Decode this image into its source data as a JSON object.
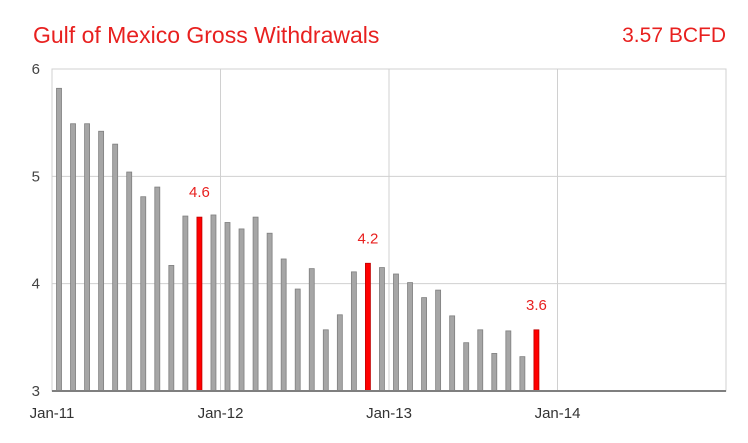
{
  "title": "Gulf of Mexico Gross Withdrawals",
  "headline_value": "3.57 BCFD",
  "chart_data": {
    "type": "bar",
    "title": "Gulf of Mexico Gross Withdrawals",
    "xlabel": "",
    "ylabel": "",
    "ylim": [
      3,
      6
    ],
    "yticks": [
      3,
      4,
      5,
      6
    ],
    "x_ticks": [
      {
        "label": "Jan-11",
        "month_index": 0
      },
      {
        "label": "Jan-12",
        "month_index": 12
      },
      {
        "label": "Jan-13",
        "month_index": 24
      },
      {
        "label": "Jan-14",
        "month_index": 36
      }
    ],
    "x_range_months": [
      0,
      48
    ],
    "grid": true,
    "series": [
      {
        "color": "#a6a6a6",
        "highlight_color": "#ff0000",
        "values": [
          5.82,
          5.49,
          5.49,
          5.42,
          5.3,
          5.04,
          4.81,
          4.9,
          4.17,
          4.63,
          4.62,
          4.64,
          4.57,
          4.51,
          4.62,
          4.47,
          4.23,
          3.95,
          4.14,
          3.57,
          3.71,
          4.11,
          4.19,
          4.15,
          4.09,
          4.01,
          3.87,
          3.94,
          3.7,
          3.45,
          3.57,
          3.35,
          3.56,
          3.32,
          3.57
        ]
      }
    ],
    "highlights": [
      {
        "index": 10,
        "label": "4.6"
      },
      {
        "index": 22,
        "label": "4.2"
      },
      {
        "index": 34,
        "label": "3.6"
      }
    ]
  }
}
